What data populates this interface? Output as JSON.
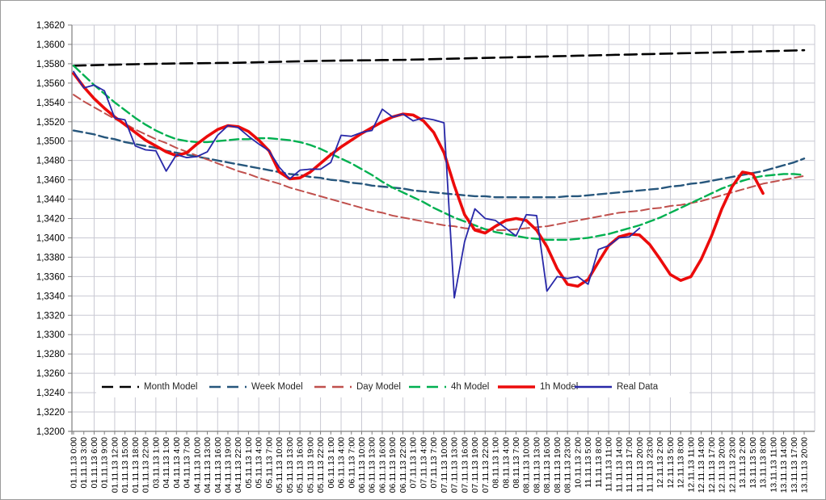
{
  "chart_data": {
    "type": "line",
    "title": "",
    "xlabel": "",
    "ylabel": "",
    "grid": true,
    "legend_position": "bottom-inside",
    "background_color": "#ffffff",
    "grid_color": "#c9c9d3",
    "axis_color": "#7f7f7f",
    "tick_label_color": "#000000",
    "y_axis": {
      "min": 1.32,
      "max": 1.362,
      "step": 0.002,
      "tick_labels": [
        "1,3620",
        "1,3600",
        "1,3580",
        "1,3560",
        "1,3540",
        "1,3520",
        "1,3500",
        "1,3480",
        "1,3460",
        "1,3440",
        "1,3420",
        "1,3400",
        "1,3380",
        "1,3360",
        "1,3340",
        "1,3320",
        "1,3300",
        "1,3280",
        "1,3260",
        "1,3240",
        "1,3220",
        "1,3200"
      ]
    },
    "x_tick_labels": [
      "01.11.13 0:00",
      "01.11.13 3:00",
      "01.11.13 6:00",
      "01.11.13 9:00",
      "01.11.13 12:00",
      "01.11.13 15:00",
      "01.11.13 18:00",
      "01.11.13 22:00",
      "03.11.13 1:00",
      "04.11.13 1:00",
      "04.11.13 4:00",
      "04.11.13 7:00",
      "04.11.13 10:00",
      "04.11.13 13:00",
      "04.11.13 16:00",
      "04.11.13 19:00",
      "04.11.13 22:00",
      "05.11.13 1:00",
      "05.11.13 4:00",
      "05.11.13 7:00",
      "05.11.13 10:00",
      "05.11.13 13:00",
      "05.11.13 16:00",
      "05.11.13 19:00",
      "05.11.13 22:00",
      "06.11.13 1:00",
      "06.11.13 4:00",
      "06.11.13 7:00",
      "06.11.13 10:00",
      "06.11.13 13:00",
      "06.11.13 16:00",
      "06.11.13 19:00",
      "06.11.13 22:00",
      "07.11.13 1:00",
      "07.11.13 4:00",
      "07.11.13 7:00",
      "07.11.13 10:00",
      "07.11.13 13:00",
      "07.11.13 16:00",
      "07.11.13 19:00",
      "07.11.13 22:00",
      "08.11.13 1:00",
      "08.11.13 4:00",
      "08.11.13 7:00",
      "08.11.13 10:00",
      "08.11.13 13:00",
      "08.11.13 16:00",
      "08.11.13 19:00",
      "08.11.13 23:00",
      "10.11.13 2:00",
      "11.11.13 5:00",
      "11.11.13 8:00",
      "11.11.13 11:00",
      "11.11.13 14:00",
      "11.11.13 17:00",
      "11.11.13 20:00",
      "11.11.13 23:00",
      "12.11.13 2:00",
      "12.11.13 5:00",
      "12.11.13 8:00",
      "12.11.13 11:00",
      "12.11.13 14:00",
      "12.11.13 17:00",
      "12.11.13 20:00",
      "12.11.13 23:00",
      "13.11.13 2:00",
      "13.11.13 5:00",
      "13.11.13 8:00",
      "13.11.13 11:00",
      "13.11.13 14:00",
      "13.11.13 17:00",
      "13.11.13 20:00"
    ],
    "series": [
      {
        "name": "Month Model",
        "color": "#000000",
        "dash": "15,7",
        "width": 2.6,
        "values": [
          1.3578,
          1.35783,
          1.35785,
          1.35788,
          1.3579,
          1.35793,
          1.35795,
          1.35798,
          1.358,
          1.35801,
          1.35803,
          1.35804,
          1.35805,
          1.35806,
          1.35808,
          1.35809,
          1.3581,
          1.35813,
          1.35815,
          1.35818,
          1.3582,
          1.35823,
          1.35825,
          1.35828,
          1.3583,
          1.35831,
          1.35833,
          1.35834,
          1.35835,
          1.35836,
          1.35838,
          1.35839,
          1.3584,
          1.35843,
          1.35845,
          1.35848,
          1.3585,
          1.35853,
          1.35855,
          1.35858,
          1.3586,
          1.35863,
          1.35865,
          1.35868,
          1.3587,
          1.35873,
          1.35875,
          1.35878,
          1.3588,
          1.35883,
          1.35885,
          1.35888,
          1.3589,
          1.35893,
          1.35895,
          1.35898,
          1.359,
          1.35903,
          1.35905,
          1.35908,
          1.3591,
          1.35913,
          1.35915,
          1.35918,
          1.3592,
          1.35923,
          1.35926,
          1.35929,
          1.35931,
          1.35934,
          1.35937,
          1.3594
        ]
      },
      {
        "name": "Week Model",
        "color": "#26567C",
        "dash": "11,5",
        "width": 2.4,
        "values": [
          1.3511,
          1.3509,
          1.3507,
          1.3504,
          1.3502,
          1.3499,
          1.3497,
          1.3495,
          1.3493,
          1.349,
          1.3488,
          1.3486,
          1.3484,
          1.3482,
          1.348,
          1.3478,
          1.3476,
          1.3474,
          1.3472,
          1.347,
          1.3468,
          1.3466,
          1.3465,
          1.3463,
          1.3462,
          1.346,
          1.3459,
          1.3457,
          1.3456,
          1.3454,
          1.3453,
          1.3452,
          1.3451,
          1.3449,
          1.3448,
          1.3447,
          1.3446,
          1.3445,
          1.3444,
          1.3443,
          1.3443,
          1.3442,
          1.3442,
          1.3442,
          1.3442,
          1.3442,
          1.3442,
          1.3442,
          1.3443,
          1.3443,
          1.3444,
          1.3445,
          1.3446,
          1.3447,
          1.3448,
          1.3449,
          1.345,
          1.3451,
          1.3453,
          1.3454,
          1.3456,
          1.3457,
          1.3459,
          1.3461,
          1.3463,
          1.3465,
          1.3467,
          1.3469,
          1.3472,
          1.3475,
          1.3478,
          1.3482
        ]
      },
      {
        "name": "Day Model",
        "color": "#C0504D",
        "dash": "10,5",
        "width": 2.0,
        "values": [
          1.3548,
          1.3541,
          1.3535,
          1.3529,
          1.3523,
          1.3518,
          1.3512,
          1.3507,
          1.3502,
          1.3498,
          1.3493,
          1.3489,
          1.3485,
          1.3481,
          1.3477,
          1.3473,
          1.3469,
          1.3466,
          1.3462,
          1.3459,
          1.3456,
          1.3452,
          1.3449,
          1.3446,
          1.3443,
          1.344,
          1.3437,
          1.3434,
          1.3431,
          1.3428,
          1.3426,
          1.3423,
          1.3421,
          1.3419,
          1.3417,
          1.3415,
          1.3413,
          1.3412,
          1.341,
          1.3409,
          1.3409,
          1.3408,
          1.3408,
          1.3409,
          1.341,
          1.3411,
          1.3412,
          1.3414,
          1.3416,
          1.3418,
          1.342,
          1.3422,
          1.3424,
          1.3426,
          1.3427,
          1.3428,
          1.343,
          1.3431,
          1.3433,
          1.3434,
          1.3436,
          1.3438,
          1.3441,
          1.3444,
          1.3447,
          1.345,
          1.3453,
          1.3456,
          1.3458,
          1.346,
          1.3462,
          1.3464
        ]
      },
      {
        "name": "4h Model",
        "color": "#00B050",
        "dash": "11,5",
        "width": 2.4,
        "values": [
          1.3578,
          1.3568,
          1.3558,
          1.3549,
          1.354,
          1.3532,
          1.3524,
          1.3517,
          1.3511,
          1.3506,
          1.3502,
          1.35,
          1.3499,
          1.3499,
          1.35,
          1.3501,
          1.3502,
          1.3502,
          1.3503,
          1.3503,
          1.3502,
          1.3501,
          1.3499,
          1.3496,
          1.3492,
          1.3487,
          1.3482,
          1.3477,
          1.3471,
          1.3465,
          1.3458,
          1.3452,
          1.3447,
          1.3442,
          1.3437,
          1.3431,
          1.3426,
          1.3421,
          1.3417,
          1.3413,
          1.3409,
          1.3406,
          1.3404,
          1.3402,
          1.34,
          1.3399,
          1.3398,
          1.3398,
          1.3398,
          1.3399,
          1.34,
          1.3402,
          1.3404,
          1.3407,
          1.341,
          1.3413,
          1.3417,
          1.3421,
          1.3426,
          1.3431,
          1.3436,
          1.3441,
          1.3446,
          1.3451,
          1.3455,
          1.3459,
          1.3462,
          1.3464,
          1.3465,
          1.3466,
          1.3466,
          1.3465
        ]
      },
      {
        "name": "1h Model",
        "color": "#EC0B0B",
        "dash": null,
        "width": 3.6,
        "values": [
          1.357,
          1.3556,
          1.3544,
          1.3534,
          1.3525,
          1.3517,
          1.3509,
          1.3501,
          1.3495,
          1.3489,
          1.3485,
          1.3488,
          1.3497,
          1.3505,
          1.3512,
          1.3516,
          1.3515,
          1.351,
          1.3501,
          1.349,
          1.3468,
          1.3461,
          1.3462,
          1.3468,
          1.3477,
          1.3486,
          1.3494,
          1.3501,
          1.3508,
          1.3514,
          1.352,
          1.3525,
          1.3528,
          1.3527,
          1.3521,
          1.3509,
          1.3488,
          1.3454,
          1.3424,
          1.3408,
          1.3405,
          1.3412,
          1.3418,
          1.342,
          1.3418,
          1.3408,
          1.3391,
          1.3368,
          1.3352,
          1.335,
          1.3357,
          1.3375,
          1.3392,
          1.3401,
          1.3404,
          1.3403,
          1.3393,
          1.3378,
          1.3362,
          1.3356,
          1.336,
          1.3378,
          1.3402,
          1.343,
          1.3453,
          1.3468,
          1.3466,
          1.3446,
          null,
          null,
          null,
          null
        ]
      },
      {
        "name": "Real Data",
        "color": "#2828A8",
        "dash": null,
        "width": 1.8,
        "values": [
          1.3572,
          1.3555,
          1.3558,
          1.3552,
          1.3524,
          1.3522,
          1.3495,
          1.3491,
          1.349,
          1.3469,
          1.3486,
          1.3483,
          1.3484,
          1.3489,
          1.3506,
          1.3516,
          1.3514,
          1.3505,
          1.3497,
          1.349,
          1.3473,
          1.3461,
          1.347,
          1.3471,
          1.3471,
          1.3478,
          1.3506,
          1.3505,
          1.3509,
          1.3511,
          1.3533,
          1.3525,
          1.3528,
          1.3521,
          1.3524,
          1.3522,
          1.3519,
          1.3338,
          1.3396,
          1.343,
          1.342,
          1.3418,
          1.341,
          1.3402,
          1.3424,
          1.3423,
          1.3345,
          1.336,
          1.3358,
          1.336,
          1.3352,
          1.3388,
          1.3392,
          1.34,
          1.3401,
          1.341,
          null,
          null,
          null,
          null,
          null,
          null,
          null,
          null,
          null,
          null,
          null,
          null,
          null,
          null,
          null,
          null
        ]
      }
    ]
  }
}
